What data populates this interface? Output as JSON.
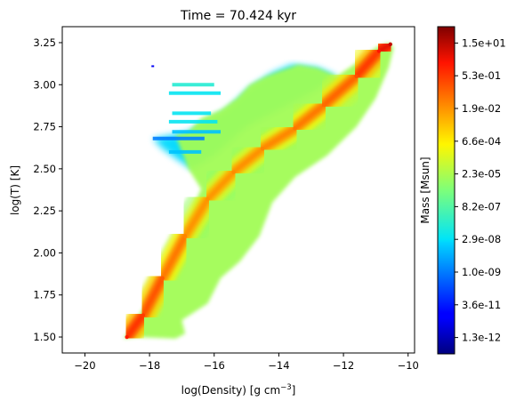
{
  "chart_data": {
    "type": "heatmap",
    "title": "Time = 70.424 kyr",
    "xlabel": "log(Density) [g cm",
    "xlabel_sup": "−3",
    "xlabel_close": "]",
    "ylabel": "log(T) [K]",
    "xlim": [
      -20.7,
      -9.8
    ],
    "ylim": [
      1.405,
      3.345
    ],
    "x_ticks": [
      -20,
      -18,
      -16,
      -14,
      -12,
      -10
    ],
    "x_tick_labels": [
      "−20",
      "−18",
      "−16",
      "−14",
      "−12",
      "−10"
    ],
    "y_ticks": [
      1.5,
      1.75,
      2.0,
      2.25,
      2.5,
      2.75,
      3.0,
      3.25
    ],
    "y_tick_labels": [
      "1.50",
      "1.75",
      "2.00",
      "2.25",
      "2.50",
      "2.75",
      "3.00",
      "3.25"
    ],
    "colorbar": {
      "label": "Mass [Msun]",
      "scale": "log",
      "colormap": "jet",
      "ticks": [
        "1.3e-12",
        "3.6e-11",
        "1.0e-09",
        "2.9e-08",
        "8.2e-07",
        "2.3e-05",
        "6.6e-04",
        "1.9e-02",
        "5.3e-01",
        "1.5e+01"
      ],
      "range_log10": [
        -11.9,
        1.8
      ]
    },
    "distribution": {
      "ridge": [
        {
          "x": -18.7,
          "y": 1.5,
          "mass_log10": 0.2
        },
        {
          "x": -18.2,
          "y": 1.63,
          "mass_log10": -0.3
        },
        {
          "x": -17.6,
          "y": 1.85,
          "mass_log10": -0.8
        },
        {
          "x": -16.9,
          "y": 2.1,
          "mass_log10": -1.4
        },
        {
          "x": -16.2,
          "y": 2.32,
          "mass_log10": -1.6
        },
        {
          "x": -15.4,
          "y": 2.48,
          "mass_log10": -1.5
        },
        {
          "x": -14.5,
          "y": 2.62,
          "mass_log10": -1.4
        },
        {
          "x": -13.5,
          "y": 2.74,
          "mass_log10": -1.2
        },
        {
          "x": -12.6,
          "y": 2.88,
          "mass_log10": -1.0
        },
        {
          "x": -11.6,
          "y": 3.05,
          "mass_log10": -0.6
        },
        {
          "x": -10.9,
          "y": 3.2,
          "mass_log10": 0.3
        },
        {
          "x": -10.55,
          "y": 3.24,
          "mass_log10": 1.0
        }
      ],
      "outer_region": [
        [
          -18.8,
          1.49
        ],
        [
          -18.4,
          1.5
        ],
        [
          -17.2,
          1.49
        ],
        [
          -16.9,
          1.52
        ],
        [
          -17.0,
          1.6
        ],
        [
          -16.2,
          1.7
        ],
        [
          -15.8,
          1.85
        ],
        [
          -15.2,
          1.95
        ],
        [
          -14.6,
          2.1
        ],
        [
          -14.2,
          2.3
        ],
        [
          -13.5,
          2.45
        ],
        [
          -12.5,
          2.58
        ],
        [
          -11.6,
          2.75
        ],
        [
          -11.0,
          2.92
        ],
        [
          -10.6,
          3.1
        ],
        [
          -10.45,
          3.22
        ],
        [
          -10.6,
          3.25
        ],
        [
          -11.0,
          3.22
        ],
        [
          -11.6,
          3.13
        ],
        [
          -12.2,
          3.05
        ],
        [
          -12.8,
          3.1
        ],
        [
          -13.4,
          3.12
        ],
        [
          -14.0,
          3.08
        ],
        [
          -14.4,
          3.05
        ],
        [
          -14.9,
          3.0
        ],
        [
          -15.3,
          2.92
        ],
        [
          -15.8,
          2.85
        ],
        [
          -16.4,
          2.8
        ],
        [
          -16.8,
          2.72
        ],
        [
          -17.2,
          2.7
        ],
        [
          -17.0,
          2.6
        ],
        [
          -16.8,
          2.5
        ],
        [
          -16.4,
          2.38
        ],
        [
          -16.6,
          2.3
        ],
        [
          -16.8,
          2.15
        ],
        [
          -17.2,
          2.0
        ],
        [
          -17.6,
          1.85
        ],
        [
          -18.1,
          1.7
        ],
        [
          -18.5,
          1.58
        ]
      ],
      "upper_region": [
        [
          -17.9,
          2.68
        ],
        [
          -16.8,
          2.72
        ],
        [
          -15.6,
          2.85
        ],
        [
          -14.9,
          2.98
        ],
        [
          -14.2,
          3.07
        ],
        [
          -13.6,
          3.12
        ],
        [
          -12.8,
          3.1
        ],
        [
          -12.2,
          3.05
        ],
        [
          -13.0,
          2.95
        ],
        [
          -14.0,
          2.85
        ],
        [
          -15.0,
          2.75
        ],
        [
          -16.0,
          2.58
        ],
        [
          -16.7,
          2.5
        ],
        [
          -17.1,
          2.55
        ],
        [
          -17.6,
          2.62
        ]
      ],
      "streaks": [
        {
          "x0": -17.9,
          "x1": -16.3,
          "y": 2.68,
          "mass_log10": -8.5
        },
        {
          "x0": -17.3,
          "x1": -15.8,
          "y": 2.72,
          "mass_log10": -7.5
        },
        {
          "x0": -17.4,
          "x1": -15.9,
          "y": 2.78,
          "mass_log10": -7.0
        },
        {
          "x0": -17.3,
          "x1": -16.1,
          "y": 2.83,
          "mass_log10": -7.0
        },
        {
          "x0": -17.4,
          "x1": -15.8,
          "y": 2.95,
          "mass_log10": -7.0
        },
        {
          "x0": -17.3,
          "x1": -16.0,
          "y": 3.0,
          "mass_log10": -6.5
        },
        {
          "x0": -17.4,
          "x1": -16.4,
          "y": 2.6,
          "mass_log10": -7.5
        }
      ],
      "isolated_points": [
        {
          "x": -17.9,
          "y": 3.11,
          "mass_log10": -10.5
        }
      ]
    }
  }
}
